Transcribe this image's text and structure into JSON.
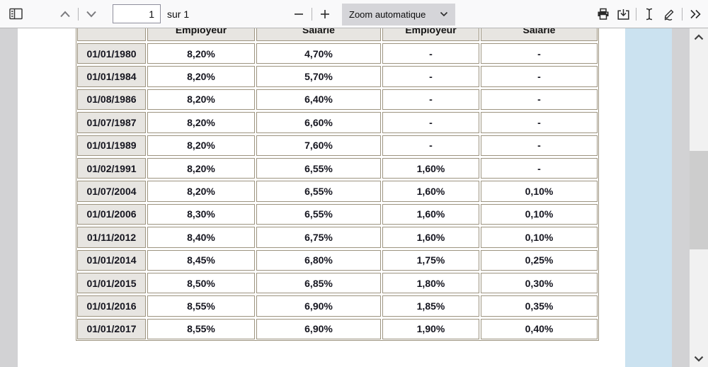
{
  "toolbar": {
    "page_input_value": "1",
    "page_count_label": "sur 1",
    "zoom_select_value": "Zoom automatique"
  },
  "table": {
    "headers": [
      "",
      "Employeur",
      "Salarié",
      "Employeur",
      "Salarié"
    ],
    "rows": [
      {
        "date": "01/01/1980",
        "values": [
          "8,20%",
          "4,70%",
          "-",
          "-"
        ]
      },
      {
        "date": "01/01/1984",
        "values": [
          "8,20%",
          "5,70%",
          "-",
          "-"
        ]
      },
      {
        "date": "01/08/1986",
        "values": [
          "8,20%",
          "6,40%",
          "-",
          "-"
        ]
      },
      {
        "date": "01/07/1987",
        "values": [
          "8,20%",
          "6,60%",
          "-",
          "-"
        ]
      },
      {
        "date": "01/01/1989",
        "values": [
          "8,20%",
          "7,60%",
          "-",
          "-"
        ]
      },
      {
        "date": "01/02/1991",
        "values": [
          "8,20%",
          "6,55%",
          "1,60%",
          "-"
        ]
      },
      {
        "date": "01/07/2004",
        "values": [
          "8,20%",
          "6,55%",
          "1,60%",
          "0,10%"
        ]
      },
      {
        "date": "01/01/2006",
        "values": [
          "8,30%",
          "6,55%",
          "1,60%",
          "0,10%"
        ]
      },
      {
        "date": "01/11/2012",
        "values": [
          "8,40%",
          "6,75%",
          "1,60%",
          "0,10%"
        ]
      },
      {
        "date": "01/01/2014",
        "values": [
          "8,45%",
          "6,80%",
          "1,75%",
          "0,25%"
        ]
      },
      {
        "date": "01/01/2015",
        "values": [
          "8,50%",
          "6,85%",
          "1,80%",
          "0,30%"
        ]
      },
      {
        "date": "01/01/2016",
        "values": [
          "8,55%",
          "6,90%",
          "1,85%",
          "0,35%"
        ]
      },
      {
        "date": "01/01/2017",
        "values": [
          "8,55%",
          "6,90%",
          "1,90%",
          "0,40%"
        ]
      }
    ]
  },
  "colors": {
    "accent_blue_strip": "#cbe2f0",
    "table_border": "#9d9480",
    "shaded_cell": "#e7e5e1",
    "toolbar_bg": "#f9f9fa",
    "viewer_bg": "#d2d2d4"
  },
  "icons": {
    "sidebar_toggle": "sidebar-toggle-icon",
    "previous_page": "chevron-up-icon",
    "next_page": "chevron-down-icon",
    "zoom_out": "minus-icon",
    "zoom_in": "plus-icon",
    "print": "printer-icon",
    "download": "download-icon",
    "text_select": "text-cursor-icon",
    "draw": "pen-icon",
    "more_tools": "double-chevron-icon"
  }
}
